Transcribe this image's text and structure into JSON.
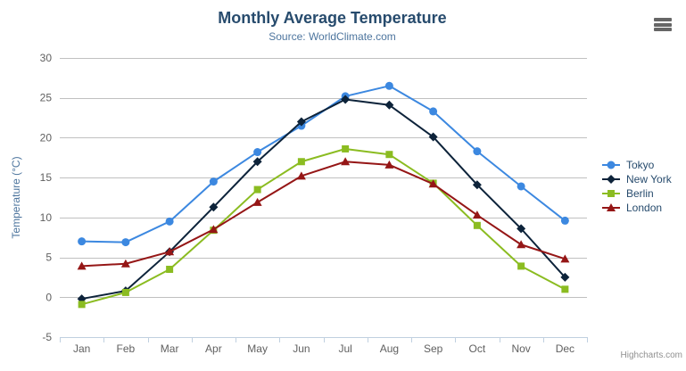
{
  "header": {
    "title": "Monthly Average Temperature",
    "subtitle": "Source: WorldClimate.com"
  },
  "credits": "Highcharts.com",
  "ui": {
    "menu_icon": "hamburger-menu",
    "grid_color": "#c0c0c0",
    "axis_line_color": "#c0d0e0",
    "tick_label_color": "#606060",
    "axis_title_color": "#4d759e",
    "title_color": "#274b6d",
    "subtitle_color": "#4d759e",
    "legend_text_color": "#274b6d"
  },
  "chart_data": {
    "type": "line",
    "title": "Monthly Average Temperature",
    "subtitle": "Source: WorldClimate.com",
    "categories": [
      "Jan",
      "Feb",
      "Mar",
      "Apr",
      "May",
      "Jun",
      "Jul",
      "Aug",
      "Sep",
      "Oct",
      "Nov",
      "Dec"
    ],
    "xlabel": "",
    "ylabel": "Temperature (°C)",
    "ylim": [
      -5,
      30
    ],
    "yticks": [
      -5,
      0,
      5,
      10,
      15,
      20,
      25,
      30
    ],
    "grid": true,
    "legend_position": "right",
    "series": [
      {
        "name": "Tokyo",
        "color": "#3c88e0",
        "marker": "circle",
        "values": [
          7.0,
          6.9,
          9.5,
          14.5,
          18.2,
          21.5,
          25.2,
          26.5,
          23.3,
          18.3,
          13.9,
          9.6
        ]
      },
      {
        "name": "New York",
        "color": "#0d233a",
        "marker": "diamond",
        "values": [
          -0.2,
          0.8,
          5.7,
          11.3,
          17.0,
          22.0,
          24.8,
          24.1,
          20.1,
          14.1,
          8.6,
          2.5
        ]
      },
      {
        "name": "Berlin",
        "color": "#8bbc21",
        "marker": "square",
        "values": [
          -0.9,
          0.6,
          3.5,
          8.4,
          13.5,
          17.0,
          18.6,
          17.9,
          14.3,
          9.0,
          3.9,
          1.0
        ]
      },
      {
        "name": "London",
        "color": "#951616",
        "marker": "triangle",
        "values": [
          3.9,
          4.2,
          5.7,
          8.5,
          11.9,
          15.2,
          17.0,
          16.6,
          14.2,
          10.3,
          6.6,
          4.8
        ]
      }
    ]
  }
}
